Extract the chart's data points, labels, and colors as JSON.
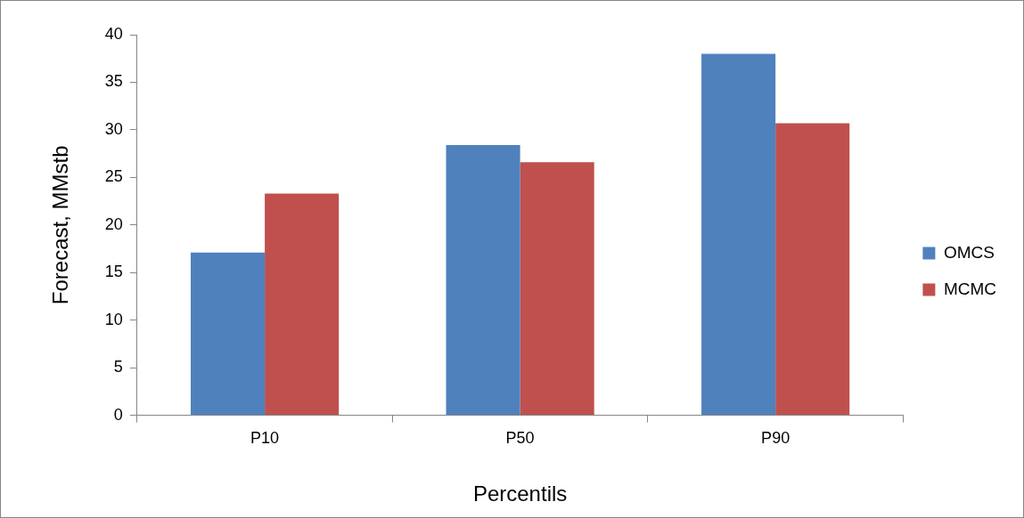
{
  "chart_data": {
    "type": "bar",
    "xlabel": "Percentils",
    "ylabel": "Forecast, MMstb",
    "categories": [
      "P10",
      "P50",
      "P90"
    ],
    "series": [
      {
        "name": "OMCS",
        "color": "#4f81bd",
        "values": [
          17.1,
          28.4,
          38.0
        ]
      },
      {
        "name": "MCMC",
        "color": "#c0504d",
        "values": [
          23.3,
          26.6,
          30.7
        ]
      }
    ],
    "ylim": [
      0,
      40
    ],
    "yticks": [
      0,
      5,
      10,
      15,
      20,
      25,
      30,
      35,
      40
    ],
    "grid": false,
    "legend": "right"
  }
}
